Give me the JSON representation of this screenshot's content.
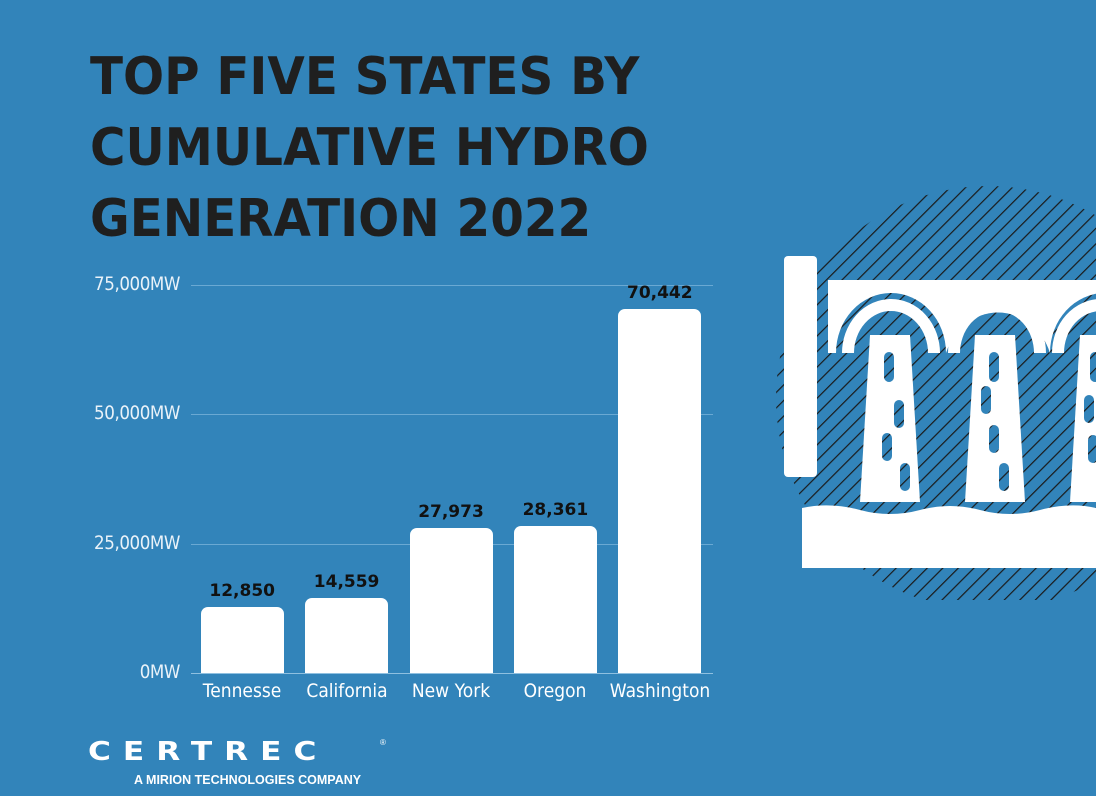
{
  "title": {
    "lines": [
      "TOP FIVE STATES BY",
      "CUMULATIVE HYDRO",
      "GENERATION 2022"
    ]
  },
  "chart_data": {
    "type": "bar",
    "title": "TOP FIVE STATES BY CUMULATIVE HYDRO GENERATION 2022",
    "categories": [
      "Tennesse",
      "California",
      "New York",
      "Oregon",
      "Washington"
    ],
    "values": [
      12850,
      14559,
      27973,
      28361,
      70442
    ],
    "value_labels": [
      "12,850",
      "14,559",
      "27,973",
      "28,361",
      "70,442"
    ],
    "xlabel": "",
    "ylabel": "",
    "yticks": [
      "0MW",
      "25,000MW",
      "50,000MW",
      "75,000MW"
    ],
    "ytick_values": [
      0,
      25000,
      50000,
      75000
    ],
    "ylim": [
      0,
      75000
    ],
    "grid": true,
    "legend": null,
    "bar_color": "#ffffff",
    "background_color": "#3284ba"
  },
  "branding": {
    "logo_text": "CERTREC",
    "registered_mark": "®",
    "tagline": "A MIRION TECHNOLOGIES COMPANY"
  },
  "illustration": {
    "icon": "hydro-dam-icon"
  }
}
